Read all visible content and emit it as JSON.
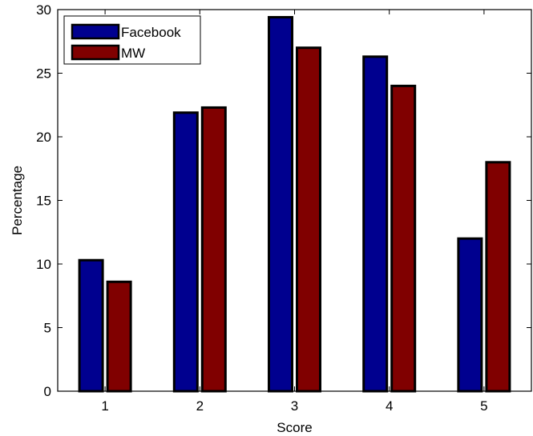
{
  "chart_data": {
    "type": "bar",
    "categories": [
      "1",
      "2",
      "3",
      "4",
      "5"
    ],
    "series": [
      {
        "name": "Facebook",
        "color": "#00008f",
        "values": [
          10.3,
          21.9,
          29.4,
          26.3,
          12.0
        ]
      },
      {
        "name": "MW",
        "color": "#800000",
        "values": [
          8.6,
          22.3,
          27.0,
          24.0,
          18.0
        ]
      }
    ],
    "xlabel": "Score",
    "ylabel": "Percentage",
    "ylim": [
      0,
      30
    ],
    "yticks": [
      0,
      5,
      10,
      15,
      20,
      25,
      30
    ],
    "grid": false,
    "legend_position": "top-left"
  }
}
